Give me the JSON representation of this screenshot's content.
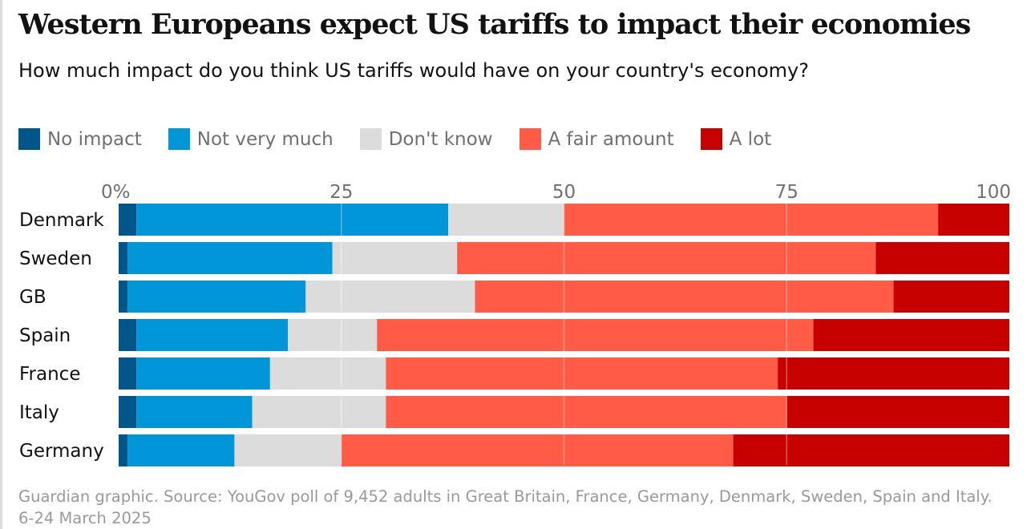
{
  "title": "Western Europeans expect US tariffs to impact their economies",
  "subtitle": "How much impact do you think US tariffs would have on your country's economy?",
  "footer": "Guardian graphic. Source: YouGov poll of 9,452 adults in Great Britain, France, Germany, Denmark, Sweden, Spain and Italy. 6-24 March 2025",
  "chart_data": {
    "type": "bar",
    "orientation": "horizontal-stacked-100",
    "categories": [
      "Denmark",
      "Sweden",
      "GB",
      "Spain",
      "France",
      "Italy",
      "Germany"
    ],
    "xlim": [
      0,
      100
    ],
    "ticks": [
      "0%",
      "25",
      "50",
      "75",
      "100"
    ],
    "tick_values": [
      0,
      25,
      50,
      75,
      100
    ],
    "grid": true,
    "legend_position": "top",
    "series": [
      {
        "name": "No impact",
        "color": "#005689",
        "values": [
          2,
          1,
          1,
          2,
          2,
          2,
          1
        ]
      },
      {
        "name": "Not very much",
        "color": "#0096d8",
        "values": [
          35,
          23,
          20,
          17,
          15,
          13,
          12
        ]
      },
      {
        "name": "Don't know",
        "color": "#dcdcdc",
        "values": [
          13,
          14,
          19,
          10,
          13,
          15,
          12
        ]
      },
      {
        "name": "A fair amount",
        "color": "#ff5b47",
        "values": [
          42,
          47,
          47,
          49,
          44,
          45,
          44
        ]
      },
      {
        "name": "A lot",
        "color": "#c70000",
        "values": [
          8,
          15,
          13,
          22,
          26,
          25,
          31
        ]
      }
    ]
  }
}
